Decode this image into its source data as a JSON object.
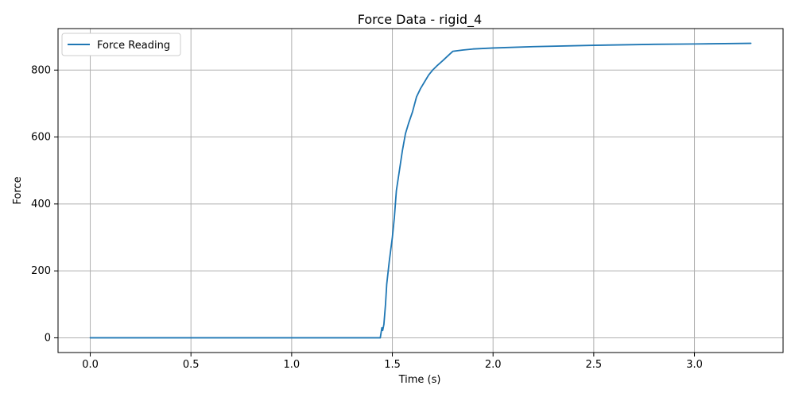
{
  "chart_data": {
    "type": "line",
    "title": "Force Data - rigid_4",
    "xlabel": "Time (s)",
    "ylabel": "Force",
    "xlim": [
      -0.16,
      3.44
    ],
    "ylim": [
      -44,
      924
    ],
    "x_ticks": [
      0.0,
      0.5,
      1.0,
      1.5,
      2.0,
      2.5,
      3.0
    ],
    "x_tick_labels": [
      "0.0",
      "0.5",
      "1.0",
      "1.5",
      "2.0",
      "2.5",
      "3.0"
    ],
    "y_ticks": [
      0,
      200,
      400,
      600,
      800
    ],
    "y_tick_labels": [
      "0",
      "200",
      "400",
      "600",
      "800"
    ],
    "grid": true,
    "legend_position": "upper-left",
    "series_color": "#1f77b4",
    "series": [
      {
        "name": "Force Reading",
        "points": [
          [
            0.0,
            0
          ],
          [
            0.5,
            0
          ],
          [
            1.0,
            0
          ],
          [
            1.44,
            0
          ],
          [
            1.448,
            30
          ],
          [
            1.452,
            22
          ],
          [
            1.458,
            40
          ],
          [
            1.466,
            100
          ],
          [
            1.472,
            160
          ],
          [
            1.485,
            230
          ],
          [
            1.5,
            300
          ],
          [
            1.51,
            360
          ],
          [
            1.52,
            440
          ],
          [
            1.535,
            500
          ],
          [
            1.55,
            560
          ],
          [
            1.565,
            610
          ],
          [
            1.58,
            640
          ],
          [
            1.6,
            675
          ],
          [
            1.62,
            720
          ],
          [
            1.64,
            745
          ],
          [
            1.66,
            765
          ],
          [
            1.68,
            785
          ],
          [
            1.7,
            800
          ],
          [
            1.72,
            812
          ],
          [
            1.75,
            828
          ],
          [
            1.78,
            845
          ],
          [
            1.8,
            856
          ],
          [
            1.85,
            860
          ],
          [
            1.9,
            863
          ],
          [
            2.0,
            866
          ],
          [
            2.2,
            870
          ],
          [
            2.5,
            874
          ],
          [
            2.8,
            877
          ],
          [
            3.0,
            878
          ],
          [
            3.28,
            880
          ]
        ]
      }
    ]
  }
}
